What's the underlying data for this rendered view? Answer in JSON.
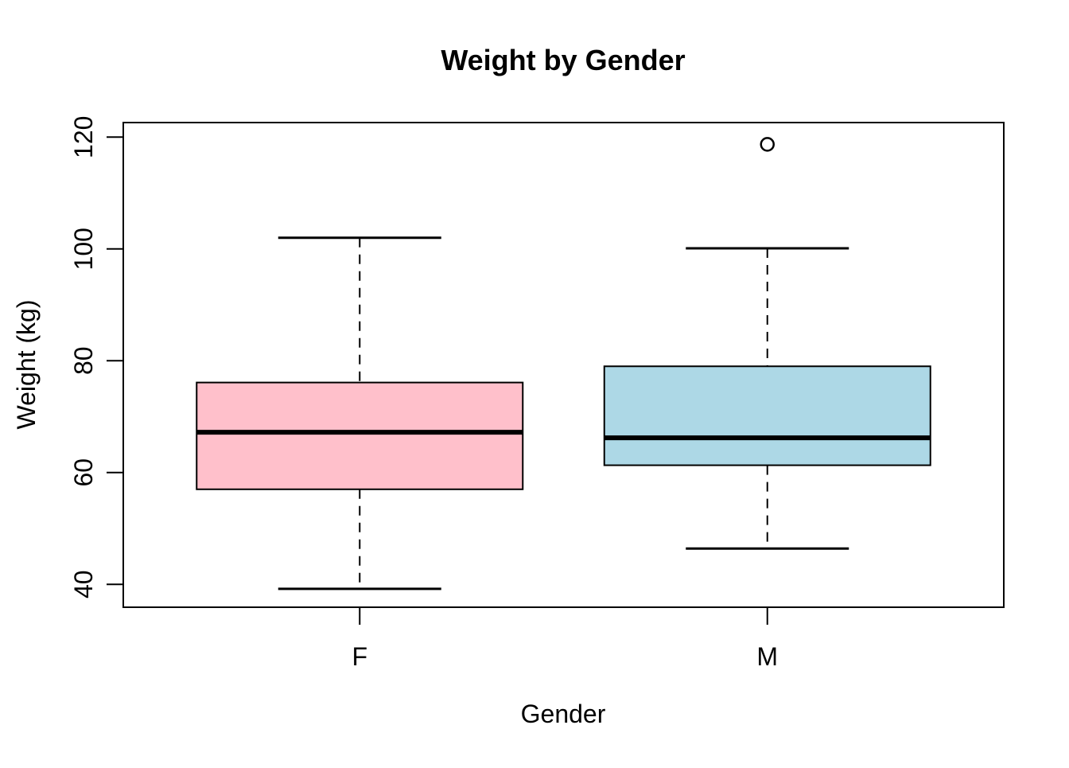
{
  "page": {
    "background": "#FFFFFF"
  },
  "chart_data": {
    "type": "boxplot",
    "title": "Weight by Gender",
    "xlabel": "Gender",
    "ylabel": "Weight (kg)",
    "categories": [
      "F",
      "M"
    ],
    "y_ticks": [
      40,
      60,
      80,
      100,
      120
    ],
    "ylim": [
      35.9,
      122.6
    ],
    "grid": false,
    "legend": "none",
    "orientation": "vertical",
    "stroke_color": "#000000",
    "background_color": "#FFFFFF",
    "series": [
      {
        "name": "F",
        "fill": "#FFC0CB",
        "whisker_low": 39.2,
        "q1": 57.0,
        "median": 67.2,
        "q3": 76.1,
        "whisker_high": 102.0,
        "outliers": []
      },
      {
        "name": "M",
        "fill": "#ADD8E6",
        "whisker_low": 46.4,
        "q1": 61.3,
        "median": 66.2,
        "q3": 79.0,
        "whisker_high": 100.1,
        "outliers": [
          118.7
        ]
      }
    ]
  }
}
